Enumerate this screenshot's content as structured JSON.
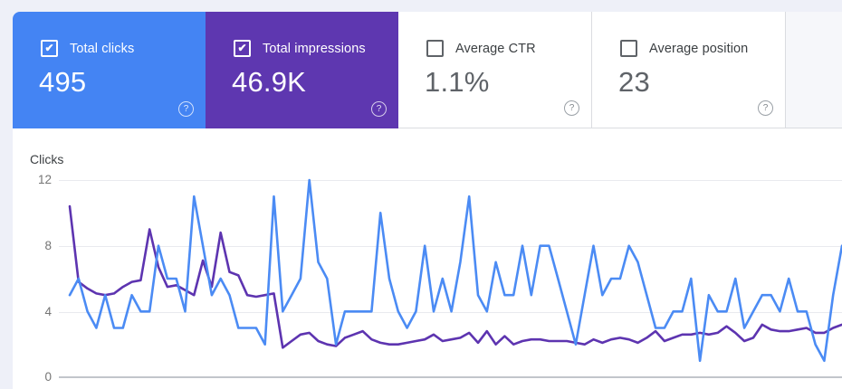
{
  "icons": {
    "check": "✔",
    "help": "?"
  },
  "cards": [
    {
      "label": "Total clicks",
      "value": "495",
      "selected": true,
      "color": "#4484f3"
    },
    {
      "label": "Total impressions",
      "value": "46.9K",
      "selected": true,
      "color": "#5e37b0"
    },
    {
      "label": "Average CTR",
      "value": "1.1%",
      "selected": false,
      "color": "#ffffff"
    },
    {
      "label": "Average position",
      "value": "23",
      "selected": false,
      "color": "#ffffff"
    }
  ],
  "chart_data": {
    "type": "line",
    "title": "Clicks",
    "ylabel": "Clicks",
    "ylim": [
      0,
      12
    ],
    "y_ticks": [
      "12",
      "8",
      "4",
      "0"
    ],
    "grid": "horizontal only",
    "legend": "none (series colors match metric cards)",
    "note": "Daily values; x-axis date labels are cut off in the screenshot. Impressions series is plotted rescaled onto the clicks axis.",
    "series": [
      {
        "name": "Total clicks",
        "color": "#4b8bf4",
        "values": [
          5,
          6,
          4,
          3,
          5,
          3,
          3,
          5,
          4,
          4,
          8,
          6,
          6,
          4,
          11,
          8,
          5,
          6,
          5,
          3,
          3,
          3,
          2,
          11,
          4,
          5,
          6,
          12,
          7,
          6,
          2,
          4,
          4,
          4,
          4,
          10,
          6,
          4,
          3,
          4,
          8,
          4,
          6,
          4,
          7,
          11,
          5,
          4,
          7,
          5,
          5,
          8,
          5,
          8,
          8,
          6,
          4,
          2,
          5,
          8,
          5,
          6,
          6,
          8,
          7,
          5,
          3,
          3,
          4,
          4,
          6,
          1,
          5,
          4,
          4,
          6,
          3,
          4,
          5,
          5,
          4,
          6,
          4,
          4,
          2,
          1,
          5,
          8
        ]
      },
      {
        "name": "Total impressions (scaled)",
        "color": "#5d34b0",
        "values": [
          10.4,
          5.8,
          5.4,
          5.1,
          5.0,
          5.1,
          5.5,
          5.8,
          5.9,
          9.0,
          6.7,
          5.5,
          5.6,
          5.3,
          5.0,
          7.1,
          5.5,
          8.8,
          6.4,
          6.2,
          5.0,
          4.9,
          5.0,
          5.1,
          1.8,
          2.2,
          2.6,
          2.7,
          2.2,
          2.0,
          1.9,
          2.4,
          2.6,
          2.8,
          2.3,
          2.1,
          2.0,
          2.0,
          2.1,
          2.2,
          2.3,
          2.6,
          2.2,
          2.3,
          2.4,
          2.7,
          2.1,
          2.8,
          2.0,
          2.5,
          2.0,
          2.2,
          2.3,
          2.3,
          2.2,
          2.2,
          2.2,
          2.1,
          2.0,
          2.3,
          2.1,
          2.3,
          2.4,
          2.3,
          2.1,
          2.4,
          2.8,
          2.2,
          2.4,
          2.6,
          2.6,
          2.7,
          2.6,
          2.7,
          3.1,
          2.7,
          2.2,
          2.4,
          3.2,
          2.9,
          2.8,
          2.8,
          2.9,
          3.0,
          2.7,
          2.7,
          3.0,
          3.2
        ]
      }
    ]
  }
}
